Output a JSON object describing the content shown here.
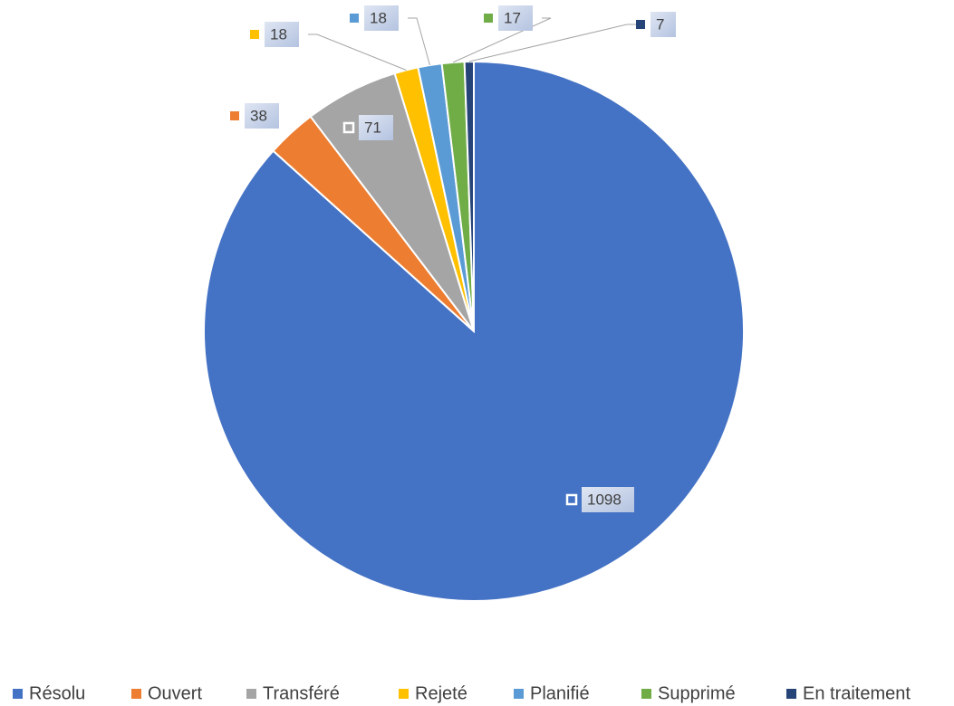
{
  "chart_data": {
    "type": "pie",
    "categories": [
      "Résolu",
      "Ouvert",
      "Transféré",
      "Rejeté",
      "Planifié",
      "Supprimé",
      "En traitement"
    ],
    "values": [
      1098,
      38,
      71,
      18,
      18,
      17,
      7
    ],
    "colors": [
      "#4472c4",
      "#ed7d31",
      "#a5a5a5",
      "#ffc000",
      "#5b9bd5",
      "#70ad47",
      "#264478"
    ],
    "legend": "bottom"
  }
}
